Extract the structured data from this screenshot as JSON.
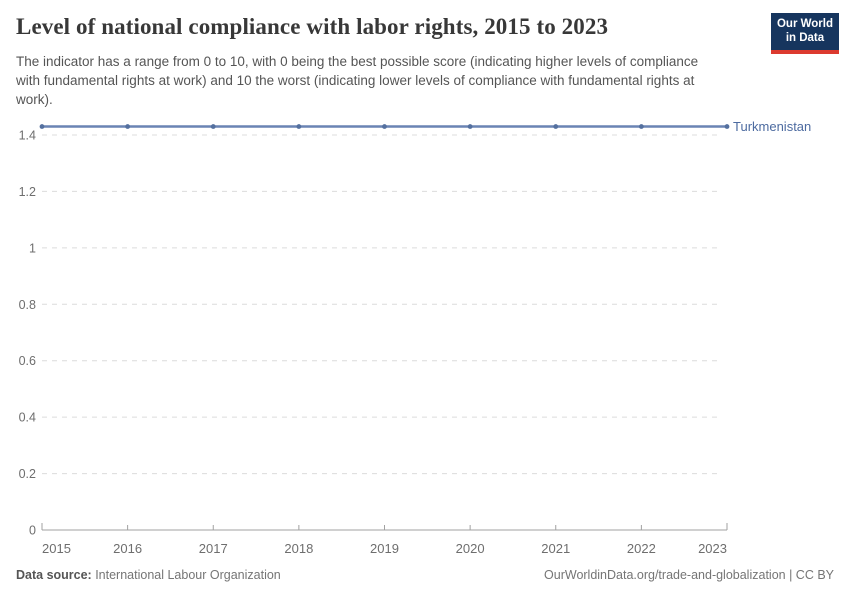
{
  "header": {
    "title": "Level of national compliance with labor rights, 2015 to 2023",
    "subtitle": "The indicator has a range from 0 to 10, with 0 being the best possible score (indicating higher levels of compliance with fundamental rights at work) and 10 the worst (indicating lower levels of compliance with fundamental rights at work)."
  },
  "logo": {
    "line1": "Our World",
    "line2": "in Data",
    "bg_color": "#16355e",
    "stripe_color": "#dc3a2f"
  },
  "chart_data": {
    "type": "line",
    "title": "Level of national compliance with labor rights, 2015 to 2023",
    "x": [
      2015,
      2016,
      2017,
      2018,
      2019,
      2020,
      2021,
      2022,
      2023
    ],
    "series": [
      {
        "name": "Turkmenistan",
        "values": [
          1.43,
          1.43,
          1.43,
          1.43,
          1.43,
          1.43,
          1.43,
          1.43,
          1.43
        ]
      }
    ],
    "xlabel": "",
    "ylabel": "",
    "ylim": [
      0,
      1.45
    ],
    "yticks": [
      0,
      0.2,
      0.4,
      0.6,
      0.8,
      1,
      1.2,
      1.4
    ],
    "ytick_labels": [
      "0",
      "0.2",
      "0.4",
      "0.6",
      "0.8",
      "1",
      "1.2",
      "1.4"
    ],
    "grid": "dashed horizontal",
    "legend_position": "end-of-line label",
    "colors": {
      "line": "#6a84b4",
      "marker": "#54709f",
      "entity_label": "#4d6ba0",
      "gridline": "#dcdcdc",
      "axis": "#a1a1a1",
      "tick_text": "#6e6e6e"
    }
  },
  "footer": {
    "data_source_label": "Data source:",
    "data_source_value": " International Labour Organization",
    "attribution": "OurWorldinData.org/trade-and-globalization | CC BY"
  }
}
